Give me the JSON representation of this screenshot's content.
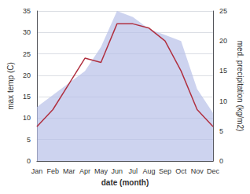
{
  "chart_data": {
    "type": "line",
    "xlabel": "date (month)",
    "ylabel": "max temp (C)",
    "y2label": "med. precipitation (kg/m2)",
    "categories": [
      "Jan",
      "Feb",
      "Mar",
      "Apr",
      "May",
      "Jun",
      "Jul",
      "Aug",
      "Sep",
      "Oct",
      "Nov",
      "Dec"
    ],
    "series": [
      {
        "type": "area",
        "axis": "y2",
        "color": "#b8c0e8",
        "values": [
          9,
          11,
          13,
          15,
          19,
          25,
          24,
          22,
          21,
          20,
          12,
          8
        ]
      },
      {
        "type": "line",
        "color": "#b03040",
        "values": [
          8,
          12,
          18,
          24,
          23,
          32,
          32,
          31,
          28,
          21,
          12,
          8
        ]
      }
    ],
    "ylim": [
      0,
      35
    ],
    "yticks": [
      0,
      5,
      10,
      15,
      20,
      25,
      30,
      35
    ],
    "y2lim": [
      0,
      25
    ],
    "y2ticks": [
      0,
      5,
      10,
      15,
      20,
      25
    ],
    "grid": true
  }
}
